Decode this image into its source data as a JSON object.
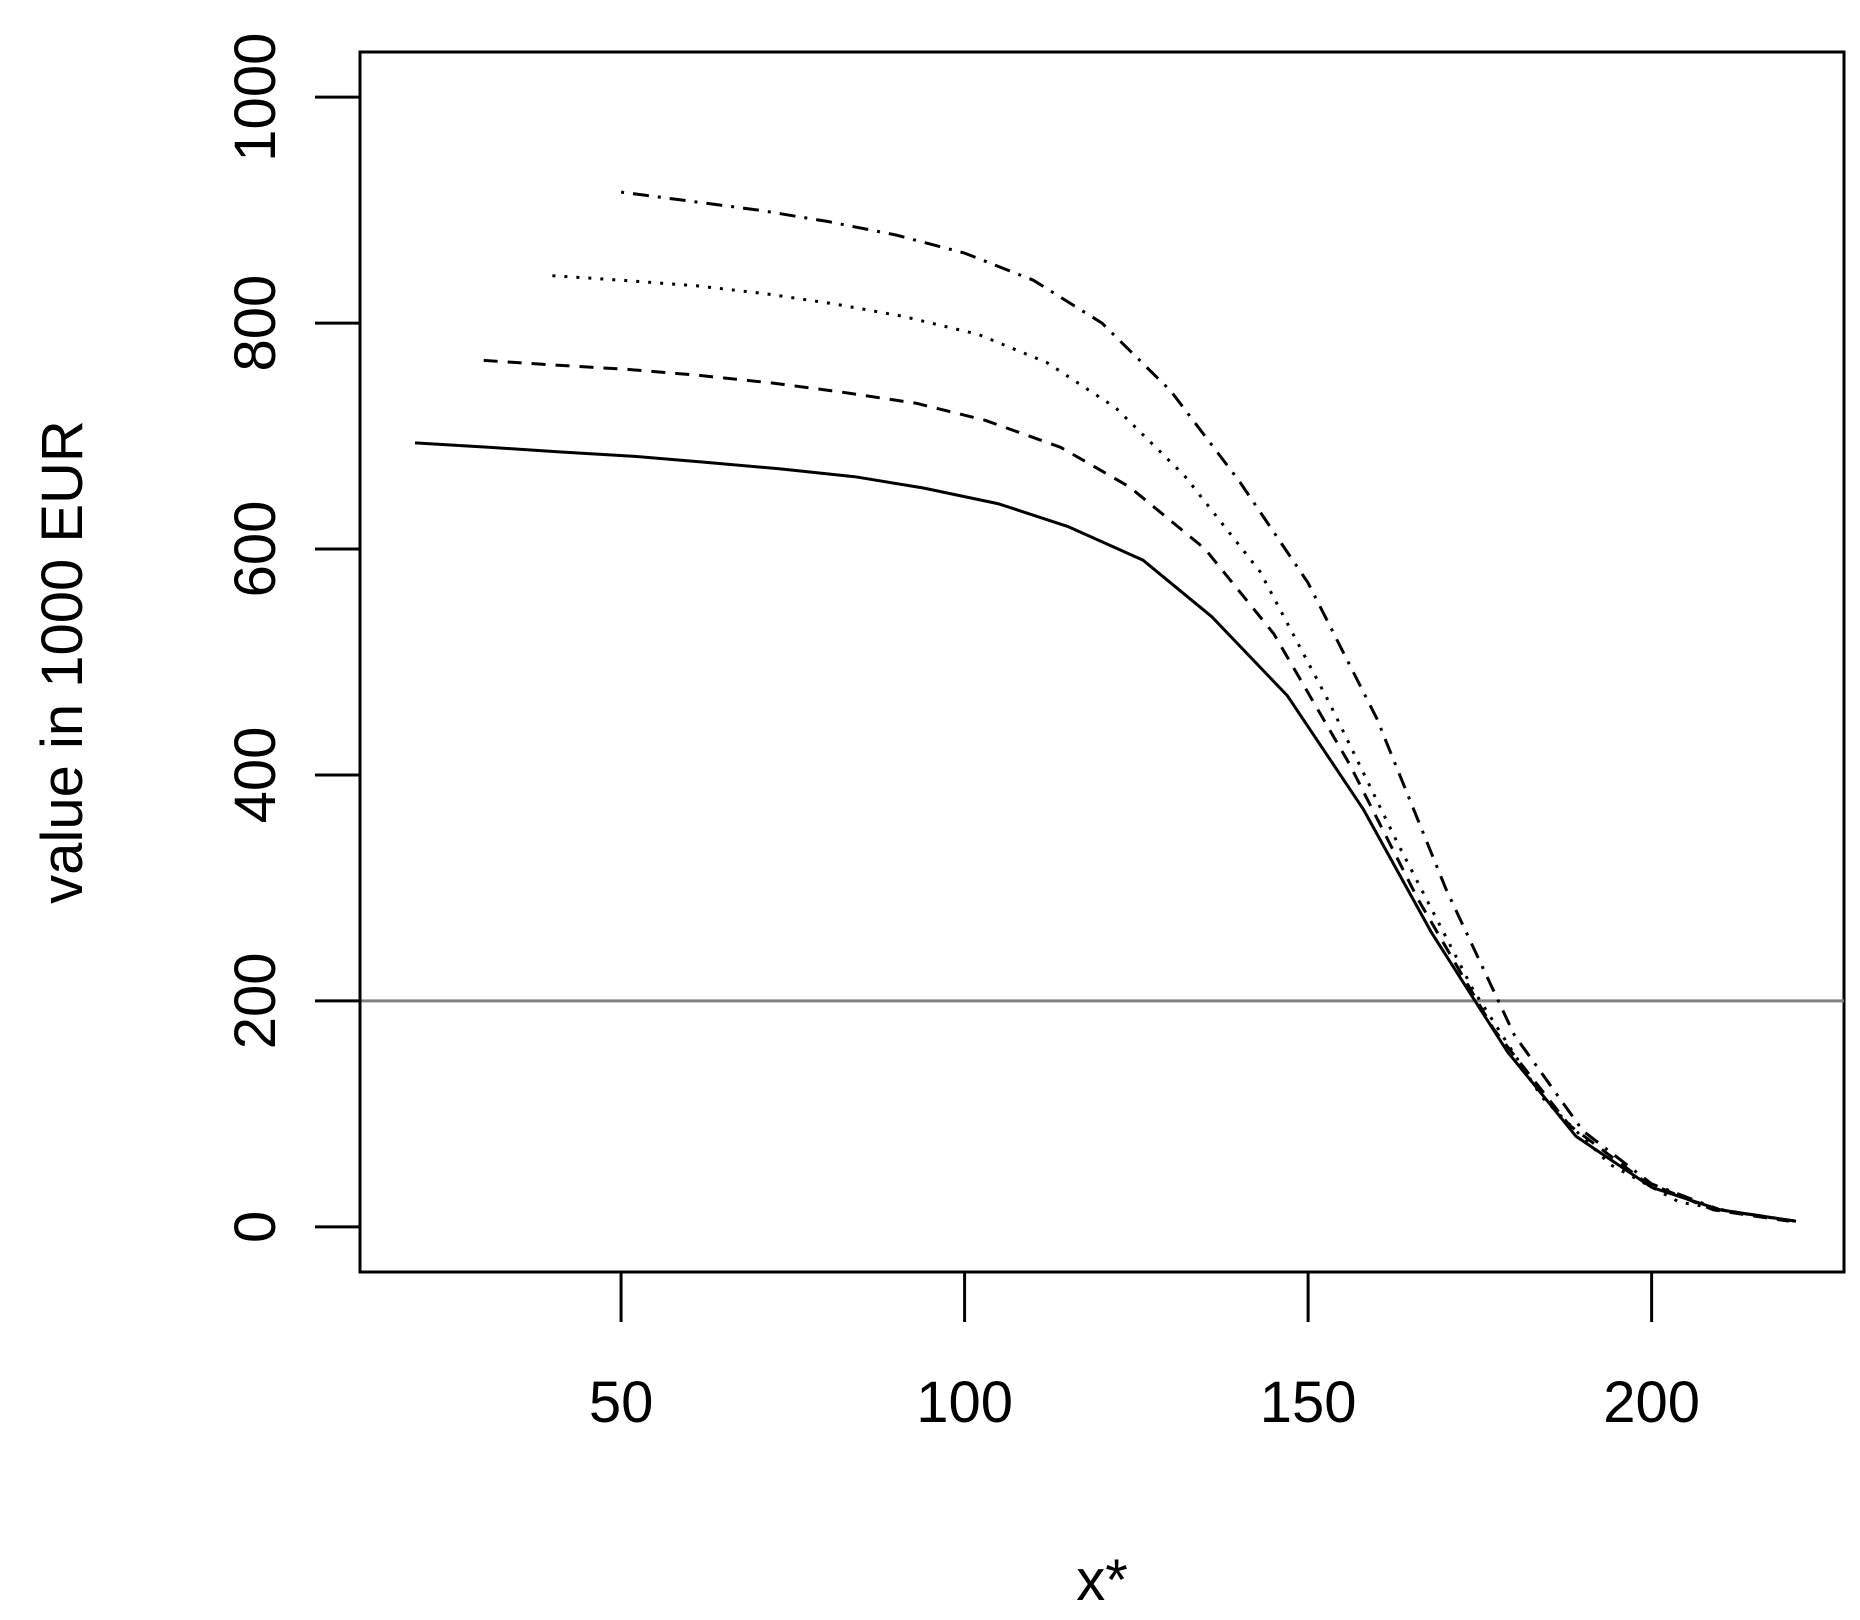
{
  "chart_data": {
    "type": "line",
    "title": "",
    "xlabel": "x*",
    "ylabel": "value in 1000 EUR",
    "xlim": [
      12,
      228
    ],
    "ylim": [
      -40,
      1040
    ],
    "xticks": [
      50,
      100,
      150,
      200
    ],
    "yticks": [
      0,
      200,
      400,
      600,
      800,
      1000
    ],
    "grid": false,
    "legend": "none",
    "reference_lines": [
      {
        "axis": "y",
        "value": 200,
        "color": "#808080"
      }
    ],
    "series": [
      {
        "style": "solid",
        "color": "#000000",
        "x": [
          20,
          31,
          41,
          52,
          62,
          73,
          84,
          94,
          105,
          115,
          126,
          136,
          147,
          158,
          168,
          179,
          189,
          200,
          210,
          221
        ],
        "y": [
          694,
          690,
          686,
          682,
          677,
          671,
          664,
          654,
          640,
          620,
          590,
          540,
          470,
          370,
          260,
          155,
          80,
          35,
          15,
          5
        ]
      },
      {
        "style": "dashed",
        "color": "#000000",
        "x": [
          30,
          40,
          51,
          61,
          72,
          82,
          93,
          103,
          114,
          124,
          135,
          145,
          156,
          166,
          177,
          188,
          199,
          209,
          220
        ],
        "y": [
          767,
          763,
          759,
          754,
          747,
          739,
          729,
          714,
          690,
          655,
          600,
          525,
          410,
          290,
          175,
          90,
          40,
          15,
          5
        ]
      },
      {
        "style": "dotted",
        "color": "#000000",
        "x": [
          40,
          50,
          61,
          71,
          81,
          91,
          102,
          112,
          122,
          132,
          143,
          153,
          163,
          174,
          184,
          194,
          204,
          215,
          221
        ],
        "y": [
          842,
          838,
          833,
          826,
          817,
          806,
          790,
          765,
          725,
          665,
          580,
          465,
          340,
          210,
          115,
          55,
          22,
          10,
          5
        ]
      },
      {
        "style": "dotdash",
        "color": "#000000",
        "x": [
          50,
          60,
          70,
          80,
          90,
          100,
          110,
          120,
          130,
          140,
          150,
          160,
          170,
          180,
          190,
          200,
          210,
          221
        ],
        "y": [
          916,
          908,
          900,
          890,
          878,
          862,
          838,
          800,
          740,
          660,
          570,
          450,
          300,
          170,
          85,
          38,
          15,
          5
        ]
      }
    ]
  }
}
